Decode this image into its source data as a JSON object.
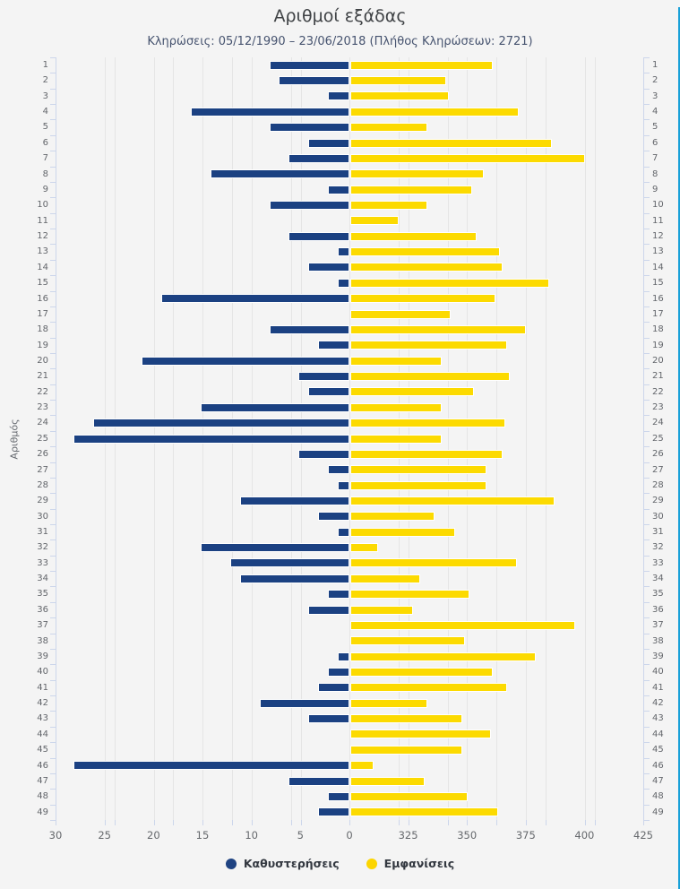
{
  "title": "Αριθμοί εξάδας",
  "subtitle": "Κληρώσεις: 05/12/1990 – 23/06/2018 (Πλήθος Κληρώσεων: 2721)",
  "y_axis_label": "Αριθμός",
  "legend": [
    {
      "label": "Καθυστερήσεις",
      "color": "#1f4382"
    },
    {
      "label": "Εμφανίσεις",
      "color": "#fcd500"
    }
  ],
  "colors": {
    "background": "#f4f4f4",
    "bar_blue": "#1b4182",
    "bar_yellow": "#fcda00",
    "gridline": "#e5e5e5",
    "axis": "#ccd6eb",
    "accent_right_border": "#18a0d8"
  },
  "chart_data": {
    "type": "bar",
    "orientation": "horizontal-diverging",
    "grid": true,
    "legend_position": "bottom",
    "categories": [
      1,
      2,
      3,
      4,
      5,
      6,
      7,
      8,
      9,
      10,
      11,
      12,
      13,
      14,
      15,
      16,
      17,
      18,
      19,
      20,
      21,
      22,
      23,
      24,
      25,
      26,
      27,
      28,
      29,
      30,
      31,
      32,
      33,
      34,
      35,
      36,
      37,
      38,
      39,
      40,
      41,
      42,
      43,
      44,
      45,
      46,
      47,
      48,
      49
    ],
    "series": [
      {
        "name": "Καθυστερήσεις",
        "side": "left",
        "color": "#1b4182",
        "values": [
          8,
          7,
          2,
          16,
          8,
          4,
          6,
          14,
          2,
          8,
          0,
          6,
          1,
          4,
          1,
          19,
          0,
          8,
          3,
          21,
          5,
          4,
          15,
          26,
          28,
          5,
          2,
          1,
          11,
          3,
          1,
          15,
          12,
          11,
          2,
          4,
          0,
          0,
          1,
          2,
          3,
          9,
          4,
          0,
          0,
          28,
          6,
          2,
          3
        ]
      },
      {
        "name": "Εμφανίσεις",
        "side": "right",
        "color": "#fcda00",
        "values": [
          360,
          340,
          341,
          371,
          332,
          385,
          399,
          356,
          351,
          332,
          320,
          353,
          363,
          364,
          384,
          361,
          342,
          374,
          366,
          338,
          367,
          352,
          338,
          365,
          338,
          364,
          357,
          357,
          386,
          335,
          344,
          311,
          370,
          329,
          350,
          326,
          395,
          348,
          378,
          360,
          366,
          332,
          347,
          359,
          347,
          309,
          331,
          349,
          362
        ]
      }
    ],
    "left_axis": {
      "label_ticks": [
        30,
        25,
        20,
        15,
        10,
        5,
        0
      ],
      "min": 0,
      "max": 30,
      "tick_step": 5,
      "reversed": true
    },
    "right_axis": {
      "label_ticks": [
        325,
        350,
        375,
        400,
        425
      ],
      "min": 300,
      "max": 425,
      "tick_step": 25
    }
  }
}
